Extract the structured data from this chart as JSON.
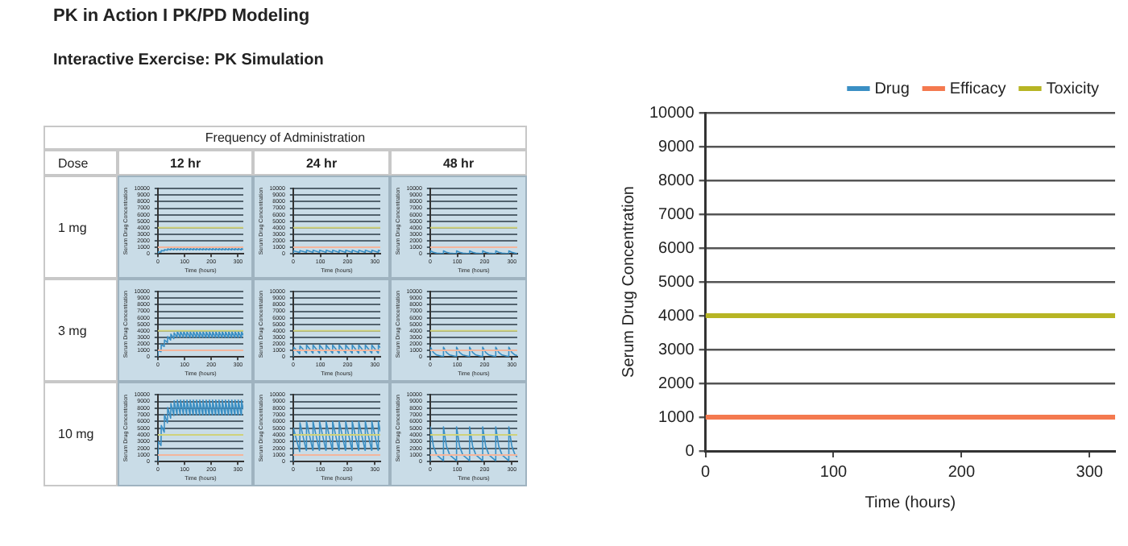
{
  "chart_data": [
    {
      "type": "other",
      "title": "PK in Action I PK/PD Modeling",
      "subtitle": "Interactive Exercise: PK Simulation",
      "annotations": [
        "Frequency of Administration",
        "Dose",
        "12 hr",
        "24 hr",
        "48 hr",
        "1 mg",
        "3 mg",
        "10 mg"
      ]
    },
    {
      "type": "line",
      "xlabel": "Time (hours)",
      "ylabel": "Serum Drug Concentration",
      "xlim": [
        0,
        320
      ],
      "ylim": [
        0,
        10000
      ],
      "yticks": [
        0,
        1000,
        2000,
        3000,
        4000,
        5000,
        6000,
        7000,
        8000,
        9000,
        10000
      ],
      "xticks": [
        0,
        100,
        200,
        300
      ],
      "grid": "y",
      "series": [
        {
          "color": "#f4b59c",
          "x": [
            0,
            320
          ],
          "values": [
            1000,
            1000
          ]
        },
        {
          "color": "#cfd27a",
          "x": [
            0,
            320
          ],
          "values": [
            4000,
            4000
          ]
        },
        {
          "color": "#3a8fc4",
          "x": [
            0,
            1,
            12,
            13,
            24,
            25,
            36,
            37,
            48,
            49,
            60,
            61,
            72,
            73,
            84,
            85,
            96,
            97,
            108,
            109,
            120,
            121,
            132,
            133,
            144,
            145,
            156,
            157,
            168,
            169,
            180,
            181,
            192,
            193,
            204,
            205,
            216,
            217,
            228,
            229,
            240,
            241,
            252,
            253,
            264,
            265,
            276,
            277,
            288,
            289,
            300,
            301,
            312,
            313,
            320
          ],
          "values": [
            0,
            300,
            250,
            500,
            450,
            650,
            550,
            750,
            600,
            800,
            620,
            800,
            620,
            800,
            620,
            800,
            620,
            800,
            620,
            800,
            620,
            800,
            620,
            800,
            620,
            800,
            620,
            800,
            620,
            800,
            620,
            800,
            620,
            800,
            620,
            800,
            620,
            800,
            620,
            800,
            620,
            800,
            620,
            800,
            620,
            800,
            620,
            800,
            620,
            800,
            620,
            800,
            620,
            800,
            700
          ]
        }
      ]
    },
    {
      "type": "line",
      "xlabel": "Time (hours)",
      "ylabel": "Serum Drug Concentration",
      "xlim": [
        0,
        320
      ],
      "ylim": [
        0,
        10000
      ],
      "yticks": [
        0,
        1000,
        2000,
        3000,
        4000,
        5000,
        6000,
        7000,
        8000,
        9000,
        10000
      ],
      "xticks": [
        0,
        100,
        200,
        300
      ],
      "grid": "y",
      "series": [
        {
          "color": "#f4b59c",
          "x": [
            0,
            320
          ],
          "values": [
            1000,
            1000
          ]
        },
        {
          "color": "#cfd27a",
          "x": [
            0,
            320
          ],
          "values": [
            4000,
            4000
          ]
        },
        {
          "color": "#3a8fc4",
          "x": [
            0,
            1,
            24,
            25,
            48,
            49,
            72,
            73,
            96,
            97,
            120,
            121,
            144,
            145,
            168,
            169,
            192,
            193,
            216,
            217,
            240,
            241,
            264,
            265,
            288,
            289,
            312,
            313,
            320
          ],
          "values": [
            0,
            450,
            200,
            500,
            250,
            550,
            250,
            550,
            250,
            550,
            250,
            550,
            250,
            550,
            250,
            550,
            250,
            550,
            250,
            550,
            250,
            550,
            250,
            550,
            250,
            550,
            250,
            550,
            450
          ]
        }
      ]
    },
    {
      "type": "line",
      "xlabel": "Time (hours)",
      "ylabel": "Serum Drug Concentration",
      "xlim": [
        0,
        320
      ],
      "ylim": [
        0,
        10000
      ],
      "yticks": [
        0,
        1000,
        2000,
        3000,
        4000,
        5000,
        6000,
        7000,
        8000,
        9000,
        10000
      ],
      "xticks": [
        0,
        100,
        200,
        300
      ],
      "grid": "y",
      "series": [
        {
          "color": "#f4b59c",
          "x": [
            0,
            320
          ],
          "values": [
            1000,
            1000
          ]
        },
        {
          "color": "#cfd27a",
          "x": [
            0,
            320
          ],
          "values": [
            4000,
            4000
          ]
        },
        {
          "color": "#3a8fc4",
          "x": [
            0,
            1,
            12,
            24,
            48,
            49,
            60,
            72,
            96,
            97,
            108,
            120,
            144,
            145,
            156,
            168,
            192,
            193,
            204,
            216,
            240,
            241,
            252,
            264,
            288,
            289,
            300,
            312,
            320
          ],
          "values": [
            0,
            450,
            250,
            100,
            20,
            450,
            250,
            100,
            20,
            450,
            250,
            100,
            20,
            450,
            250,
            100,
            20,
            450,
            250,
            100,
            20,
            450,
            250,
            100,
            20,
            450,
            250,
            100,
            50
          ]
        }
      ]
    },
    {
      "type": "line",
      "xlabel": "Time (hours)",
      "ylabel": "Serum Drug Concentration",
      "xlim": [
        0,
        320
      ],
      "ylim": [
        0,
        10000
      ],
      "yticks": [
        0,
        1000,
        2000,
        3000,
        4000,
        5000,
        6000,
        7000,
        8000,
        9000,
        10000
      ],
      "xticks": [
        0,
        100,
        200,
        300
      ],
      "grid": "y",
      "series": [
        {
          "color": "#f4b59c",
          "x": [
            0,
            320
          ],
          "values": [
            1000,
            1000
          ]
        },
        {
          "color": "#cfd27a",
          "x": [
            0,
            320
          ],
          "values": [
            4000,
            4000
          ]
        },
        {
          "color": "#3a8fc4",
          "x": [
            0,
            1,
            12,
            13,
            24,
            25,
            36,
            37,
            48,
            49,
            60,
            61,
            72,
            73,
            84,
            85,
            96,
            97,
            108,
            109,
            120,
            121,
            132,
            133,
            144,
            145,
            156,
            157,
            168,
            169,
            180,
            181,
            192,
            193,
            204,
            205,
            216,
            217,
            228,
            229,
            240,
            241,
            252,
            253,
            264,
            265,
            276,
            277,
            288,
            289,
            300,
            301,
            312,
            313,
            320
          ],
          "values": [
            0,
            1000,
            800,
            1900,
            1600,
            2600,
            2200,
            3100,
            2600,
            3500,
            2800,
            3700,
            3000,
            3900,
            3000,
            3900,
            3000,
            3900,
            3000,
            3900,
            3000,
            3900,
            3000,
            3900,
            3000,
            3900,
            3000,
            3900,
            3000,
            3900,
            3000,
            3900,
            3000,
            3900,
            3000,
            3900,
            3000,
            3900,
            3000,
            3900,
            3000,
            3900,
            3000,
            3900,
            3000,
            3900,
            3000,
            3900,
            3000,
            3900,
            3000,
            3900,
            3000,
            3900,
            3300
          ]
        }
      ]
    },
    {
      "type": "line",
      "xlabel": "Time (hours)",
      "ylabel": "Serum Drug Concentration",
      "xlim": [
        0,
        320
      ],
      "ylim": [
        0,
        10000
      ],
      "yticks": [
        0,
        1000,
        2000,
        3000,
        4000,
        5000,
        6000,
        7000,
        8000,
        9000,
        10000
      ],
      "xticks": [
        0,
        100,
        200,
        300
      ],
      "grid": "y",
      "series": [
        {
          "color": "#f4b59c",
          "x": [
            0,
            320
          ],
          "values": [
            1000,
            1000
          ]
        },
        {
          "color": "#cfd27a",
          "x": [
            0,
            320
          ],
          "values": [
            4000,
            4000
          ]
        },
        {
          "color": "#3a8fc4",
          "x": [
            0,
            1,
            24,
            25,
            48,
            49,
            72,
            73,
            96,
            97,
            120,
            121,
            144,
            145,
            168,
            169,
            192,
            193,
            216,
            217,
            240,
            241,
            264,
            265,
            288,
            289,
            312,
            313,
            320
          ],
          "values": [
            0,
            1500,
            500,
            1700,
            600,
            1800,
            600,
            1800,
            600,
            1800,
            600,
            1800,
            600,
            1800,
            600,
            1800,
            600,
            1800,
            600,
            1800,
            600,
            1800,
            600,
            1800,
            600,
            1800,
            600,
            1800,
            1400
          ]
        }
      ]
    },
    {
      "type": "line",
      "xlabel": "Time (hours)",
      "ylabel": "Serum Drug Concentration",
      "xlim": [
        0,
        320
      ],
      "ylim": [
        0,
        10000
      ],
      "yticks": [
        0,
        1000,
        2000,
        3000,
        4000,
        5000,
        6000,
        7000,
        8000,
        9000,
        10000
      ],
      "xticks": [
        0,
        100,
        200,
        300
      ],
      "grid": "y",
      "series": [
        {
          "color": "#f4b59c",
          "x": [
            0,
            320
          ],
          "values": [
            1000,
            1000
          ]
        },
        {
          "color": "#cfd27a",
          "x": [
            0,
            320
          ],
          "values": [
            4000,
            4000
          ]
        },
        {
          "color": "#3a8fc4",
          "x": [
            0,
            1,
            12,
            24,
            48,
            49,
            60,
            72,
            96,
            97,
            108,
            120,
            144,
            145,
            156,
            168,
            192,
            193,
            204,
            216,
            240,
            241,
            252,
            264,
            288,
            289,
            300,
            312,
            320
          ],
          "values": [
            0,
            1500,
            700,
            300,
            50,
            1500,
            700,
            300,
            50,
            1500,
            700,
            300,
            50,
            1500,
            700,
            300,
            50,
            1500,
            700,
            300,
            50,
            1500,
            700,
            300,
            50,
            1500,
            700,
            300,
            200
          ]
        }
      ]
    },
    {
      "type": "line",
      "xlabel": "Time (hours)",
      "ylabel": "Serum Drug Concentration",
      "xlim": [
        0,
        320
      ],
      "ylim": [
        0,
        10000
      ],
      "yticks": [
        0,
        1000,
        2000,
        3000,
        4000,
        5000,
        6000,
        7000,
        8000,
        9000,
        10000
      ],
      "xticks": [
        0,
        100,
        200,
        300
      ],
      "grid": "y",
      "series": [
        {
          "color": "#f4b59c",
          "x": [
            0,
            320
          ],
          "values": [
            1000,
            1000
          ]
        },
        {
          "color": "#cfd27a",
          "x": [
            0,
            320
          ],
          "values": [
            4000,
            4000
          ]
        },
        {
          "color": "#3a8fc4",
          "x": [
            0,
            1,
            12,
            13,
            24,
            25,
            36,
            37,
            48,
            49,
            60,
            61,
            72,
            73,
            84,
            85,
            96,
            97,
            108,
            109,
            120,
            121,
            132,
            133,
            144,
            145,
            156,
            157,
            168,
            169,
            180,
            181,
            192,
            193,
            204,
            205,
            216,
            217,
            228,
            229,
            240,
            241,
            252,
            253,
            264,
            265,
            276,
            277,
            288,
            289,
            300,
            301,
            312,
            313,
            320
          ],
          "values": [
            0,
            3000,
            2400,
            5400,
            4400,
            7000,
            5800,
            8100,
            6500,
            8700,
            6900,
            9100,
            7000,
            9200,
            7000,
            9200,
            7000,
            9200,
            7000,
            9200,
            7000,
            9200,
            7000,
            9200,
            7000,
            9200,
            7000,
            9200,
            7000,
            9200,
            7000,
            9200,
            7000,
            9200,
            7000,
            9200,
            7000,
            9200,
            7000,
            9200,
            7000,
            9200,
            7000,
            9200,
            7000,
            9200,
            7000,
            9200,
            7000,
            9200,
            7000,
            9200,
            7000,
            9200,
            7800
          ]
        }
      ]
    },
    {
      "type": "line",
      "xlabel": "Time (hours)",
      "ylabel": "Serum Drug Concentration",
      "xlim": [
        0,
        320
      ],
      "ylim": [
        0,
        10000
      ],
      "yticks": [
        0,
        1000,
        2000,
        3000,
        4000,
        5000,
        6000,
        7000,
        8000,
        9000,
        10000
      ],
      "xticks": [
        0,
        100,
        200,
        300
      ],
      "grid": "y",
      "series": [
        {
          "color": "#f4b59c",
          "x": [
            0,
            320
          ],
          "values": [
            1000,
            1000
          ]
        },
        {
          "color": "#cfd27a",
          "x": [
            0,
            320
          ],
          "values": [
            4000,
            4000
          ]
        },
        {
          "color": "#3a8fc4",
          "x": [
            0,
            1,
            24,
            25,
            48,
            49,
            72,
            73,
            96,
            97,
            120,
            121,
            144,
            145,
            168,
            169,
            192,
            193,
            216,
            217,
            240,
            241,
            264,
            265,
            288,
            289,
            312,
            313,
            320
          ],
          "values": [
            0,
            5000,
            1500,
            5800,
            1700,
            6000,
            1700,
            6000,
            1700,
            6000,
            1700,
            6000,
            1700,
            6000,
            1700,
            6000,
            1700,
            6000,
            1700,
            6000,
            1700,
            6000,
            1700,
            6000,
            1700,
            6000,
            1700,
            6000,
            4500
          ]
        }
      ]
    },
    {
      "type": "line",
      "xlabel": "Time (hours)",
      "ylabel": "Serum Drug Concentration",
      "xlim": [
        0,
        320
      ],
      "ylim": [
        0,
        10000
      ],
      "yticks": [
        0,
        1000,
        2000,
        3000,
        4000,
        5000,
        6000,
        7000,
        8000,
        9000,
        10000
      ],
      "xticks": [
        0,
        100,
        200,
        300
      ],
      "grid": "y",
      "series": [
        {
          "color": "#f4b59c",
          "x": [
            0,
            320
          ],
          "values": [
            1000,
            1000
          ]
        },
        {
          "color": "#cfd27a",
          "x": [
            0,
            320
          ],
          "values": [
            4000,
            4000
          ]
        },
        {
          "color": "#3a8fc4",
          "x": [
            0,
            1,
            12,
            24,
            48,
            49,
            60,
            72,
            96,
            97,
            108,
            120,
            144,
            145,
            156,
            168,
            192,
            193,
            204,
            216,
            240,
            241,
            252,
            264,
            288,
            289,
            300,
            312,
            320
          ],
          "values": [
            0,
            5200,
            2300,
            1000,
            150,
            5200,
            2300,
            1000,
            150,
            5200,
            2300,
            1000,
            150,
            5200,
            2300,
            1000,
            150,
            5200,
            2300,
            1000,
            150,
            5200,
            2300,
            1000,
            150,
            5200,
            2300,
            1000,
            700
          ]
        }
      ]
    },
    {
      "type": "line",
      "xlabel": "Time (hours)",
      "ylabel": "Serum Drug Concentration",
      "xlim": [
        0,
        320
      ],
      "ylim": [
        0,
        10000
      ],
      "yticks": [
        0,
        1000,
        2000,
        3000,
        4000,
        5000,
        6000,
        7000,
        8000,
        9000,
        10000
      ],
      "xticks": [
        0,
        100,
        200,
        300
      ],
      "grid": "y",
      "legend": "top right",
      "series": [
        {
          "name": "Drug",
          "color": "#3a8fc4"
        },
        {
          "name": "Efficacy",
          "color": "#f4794f",
          "x": [
            0,
            320
          ],
          "values": [
            1000,
            1000
          ]
        },
        {
          "name": "Toxicity",
          "color": "#b7b524",
          "x": [
            0,
            320
          ],
          "values": [
            4000,
            4000
          ]
        }
      ]
    }
  ]
}
